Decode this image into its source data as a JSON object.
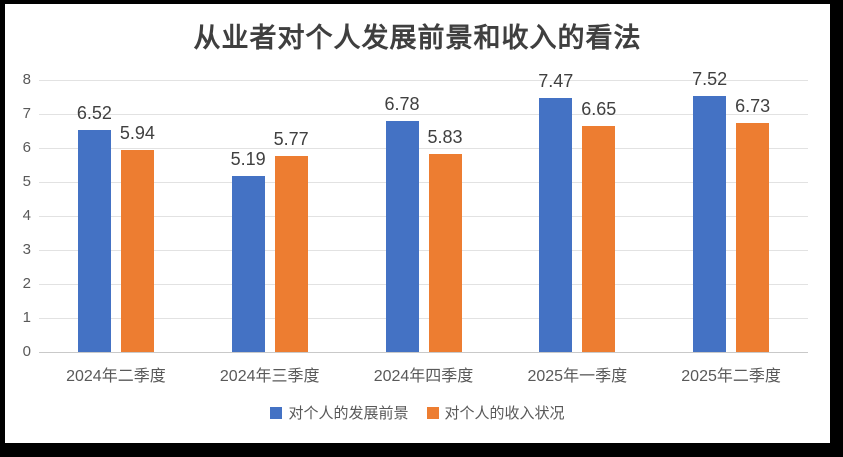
{
  "frame": {
    "border_color": "#000000",
    "background_color": "#ffffff"
  },
  "chart_data": {
    "type": "bar",
    "title": "从业者对个人发展前景和收入的看法",
    "categories": [
      "2024年二季度",
      "2024年三季度",
      "2024年四季度",
      "2025年一季度",
      "2025年二季度"
    ],
    "series": [
      {
        "name": "对个人的发展前景",
        "color": "#4472C4",
        "values": [
          6.52,
          5.19,
          6.78,
          7.47,
          7.52
        ]
      },
      {
        "name": "对个人的收入状况",
        "color": "#ED7D31",
        "values": [
          5.94,
          5.77,
          5.83,
          6.65,
          6.73
        ]
      }
    ],
    "xlabel": "",
    "ylabel": "",
    "ylim": [
      0,
      8
    ],
    "yticks": [
      0,
      1,
      2,
      3,
      4,
      5,
      6,
      7,
      8
    ],
    "grid": true,
    "data_labels": true,
    "legend_position": "bottom",
    "colors": {
      "title_text": "#3f3f3f",
      "data_label_text": "#404040",
      "axis_text": "#595959",
      "gridline": "#e2e2e2",
      "axis_line": "#c9c9c9"
    }
  }
}
